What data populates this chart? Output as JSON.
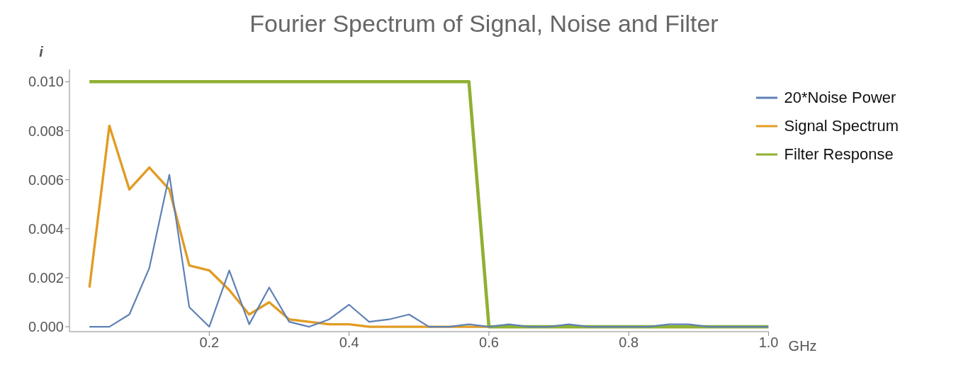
{
  "chart_data": {
    "type": "line",
    "title": "Fourier Spectrum of Signal, Noise and Filter",
    "xlabel": "GHz",
    "ylabel": "i",
    "x": [
      0.0286,
      0.0571,
      0.0857,
      0.1143,
      0.1429,
      0.1714,
      0.2,
      0.2286,
      0.2571,
      0.2857,
      0.3143,
      0.3429,
      0.3714,
      0.4,
      0.4286,
      0.4571,
      0.4857,
      0.5143,
      0.5429,
      0.5714,
      0.6,
      0.6286,
      0.6571,
      0.6857,
      0.7143,
      0.7429,
      0.7714,
      0.8,
      0.8286,
      0.8571,
      0.8857,
      0.9143,
      0.9429,
      0.9714,
      1.0
    ],
    "series": [
      {
        "name": "20*Noise Power",
        "color": "#5e81b5",
        "values": [
          0,
          0,
          0.0005,
          0.0024,
          0.0062,
          0.0008,
          0,
          0.0023,
          0.0001,
          0.0016,
          0.0002,
          0,
          0.0003,
          0.0009,
          0.0002,
          0.0003,
          0.0005,
          0,
          0,
          0.0001,
          0,
          0.0001,
          0,
          0,
          0.0001,
          0,
          0,
          0,
          0,
          0.0001,
          0.0001,
          0,
          0,
          0,
          0
        ]
      },
      {
        "name": "Signal Spectrum",
        "color": "#e19c24",
        "values": [
          0.0016,
          0.0082,
          0.0056,
          0.0065,
          0.0056,
          0.0025,
          0.0023,
          0.0015,
          0.0005,
          0.001,
          0.0003,
          0.0002,
          0.0001,
          0.0001,
          0,
          0,
          0,
          0,
          0,
          0,
          0,
          null,
          null,
          null,
          null,
          null,
          null,
          null,
          null,
          null,
          null,
          null,
          null,
          null,
          null
        ]
      },
      {
        "name": "Filter Response",
        "color": "#8fb032",
        "values": [
          0.01,
          0.01,
          0.01,
          0.01,
          0.01,
          0.01,
          0.01,
          0.01,
          0.01,
          0.01,
          0.01,
          0.01,
          0.01,
          0.01,
          0.01,
          0.01,
          0.01,
          0.01,
          0.01,
          0.01,
          0,
          0,
          0,
          0,
          0,
          0,
          0,
          0,
          0,
          0,
          0,
          0,
          0,
          0,
          0
        ]
      }
    ],
    "xlim": [
      0,
      1
    ],
    "xticks": [
      0.2,
      0.4,
      0.6,
      0.8,
      {
        "value": 1,
        "label": "1.0"
      }
    ],
    "ylim": [
      -0.0002,
      0.0105
    ],
    "yticks": [
      {
        "value": 0,
        "label": "0.000"
      },
      {
        "value": 0.002,
        "label": "0.002"
      },
      {
        "value": 0.004,
        "label": "0.004"
      },
      {
        "value": 0.006,
        "label": "0.006"
      },
      {
        "value": 0.008,
        "label": "0.008"
      },
      {
        "value": 0.01,
        "label": "0.010"
      }
    ],
    "grid": false,
    "legend": "top right",
    "marker": "none",
    "line_style": "solid"
  }
}
